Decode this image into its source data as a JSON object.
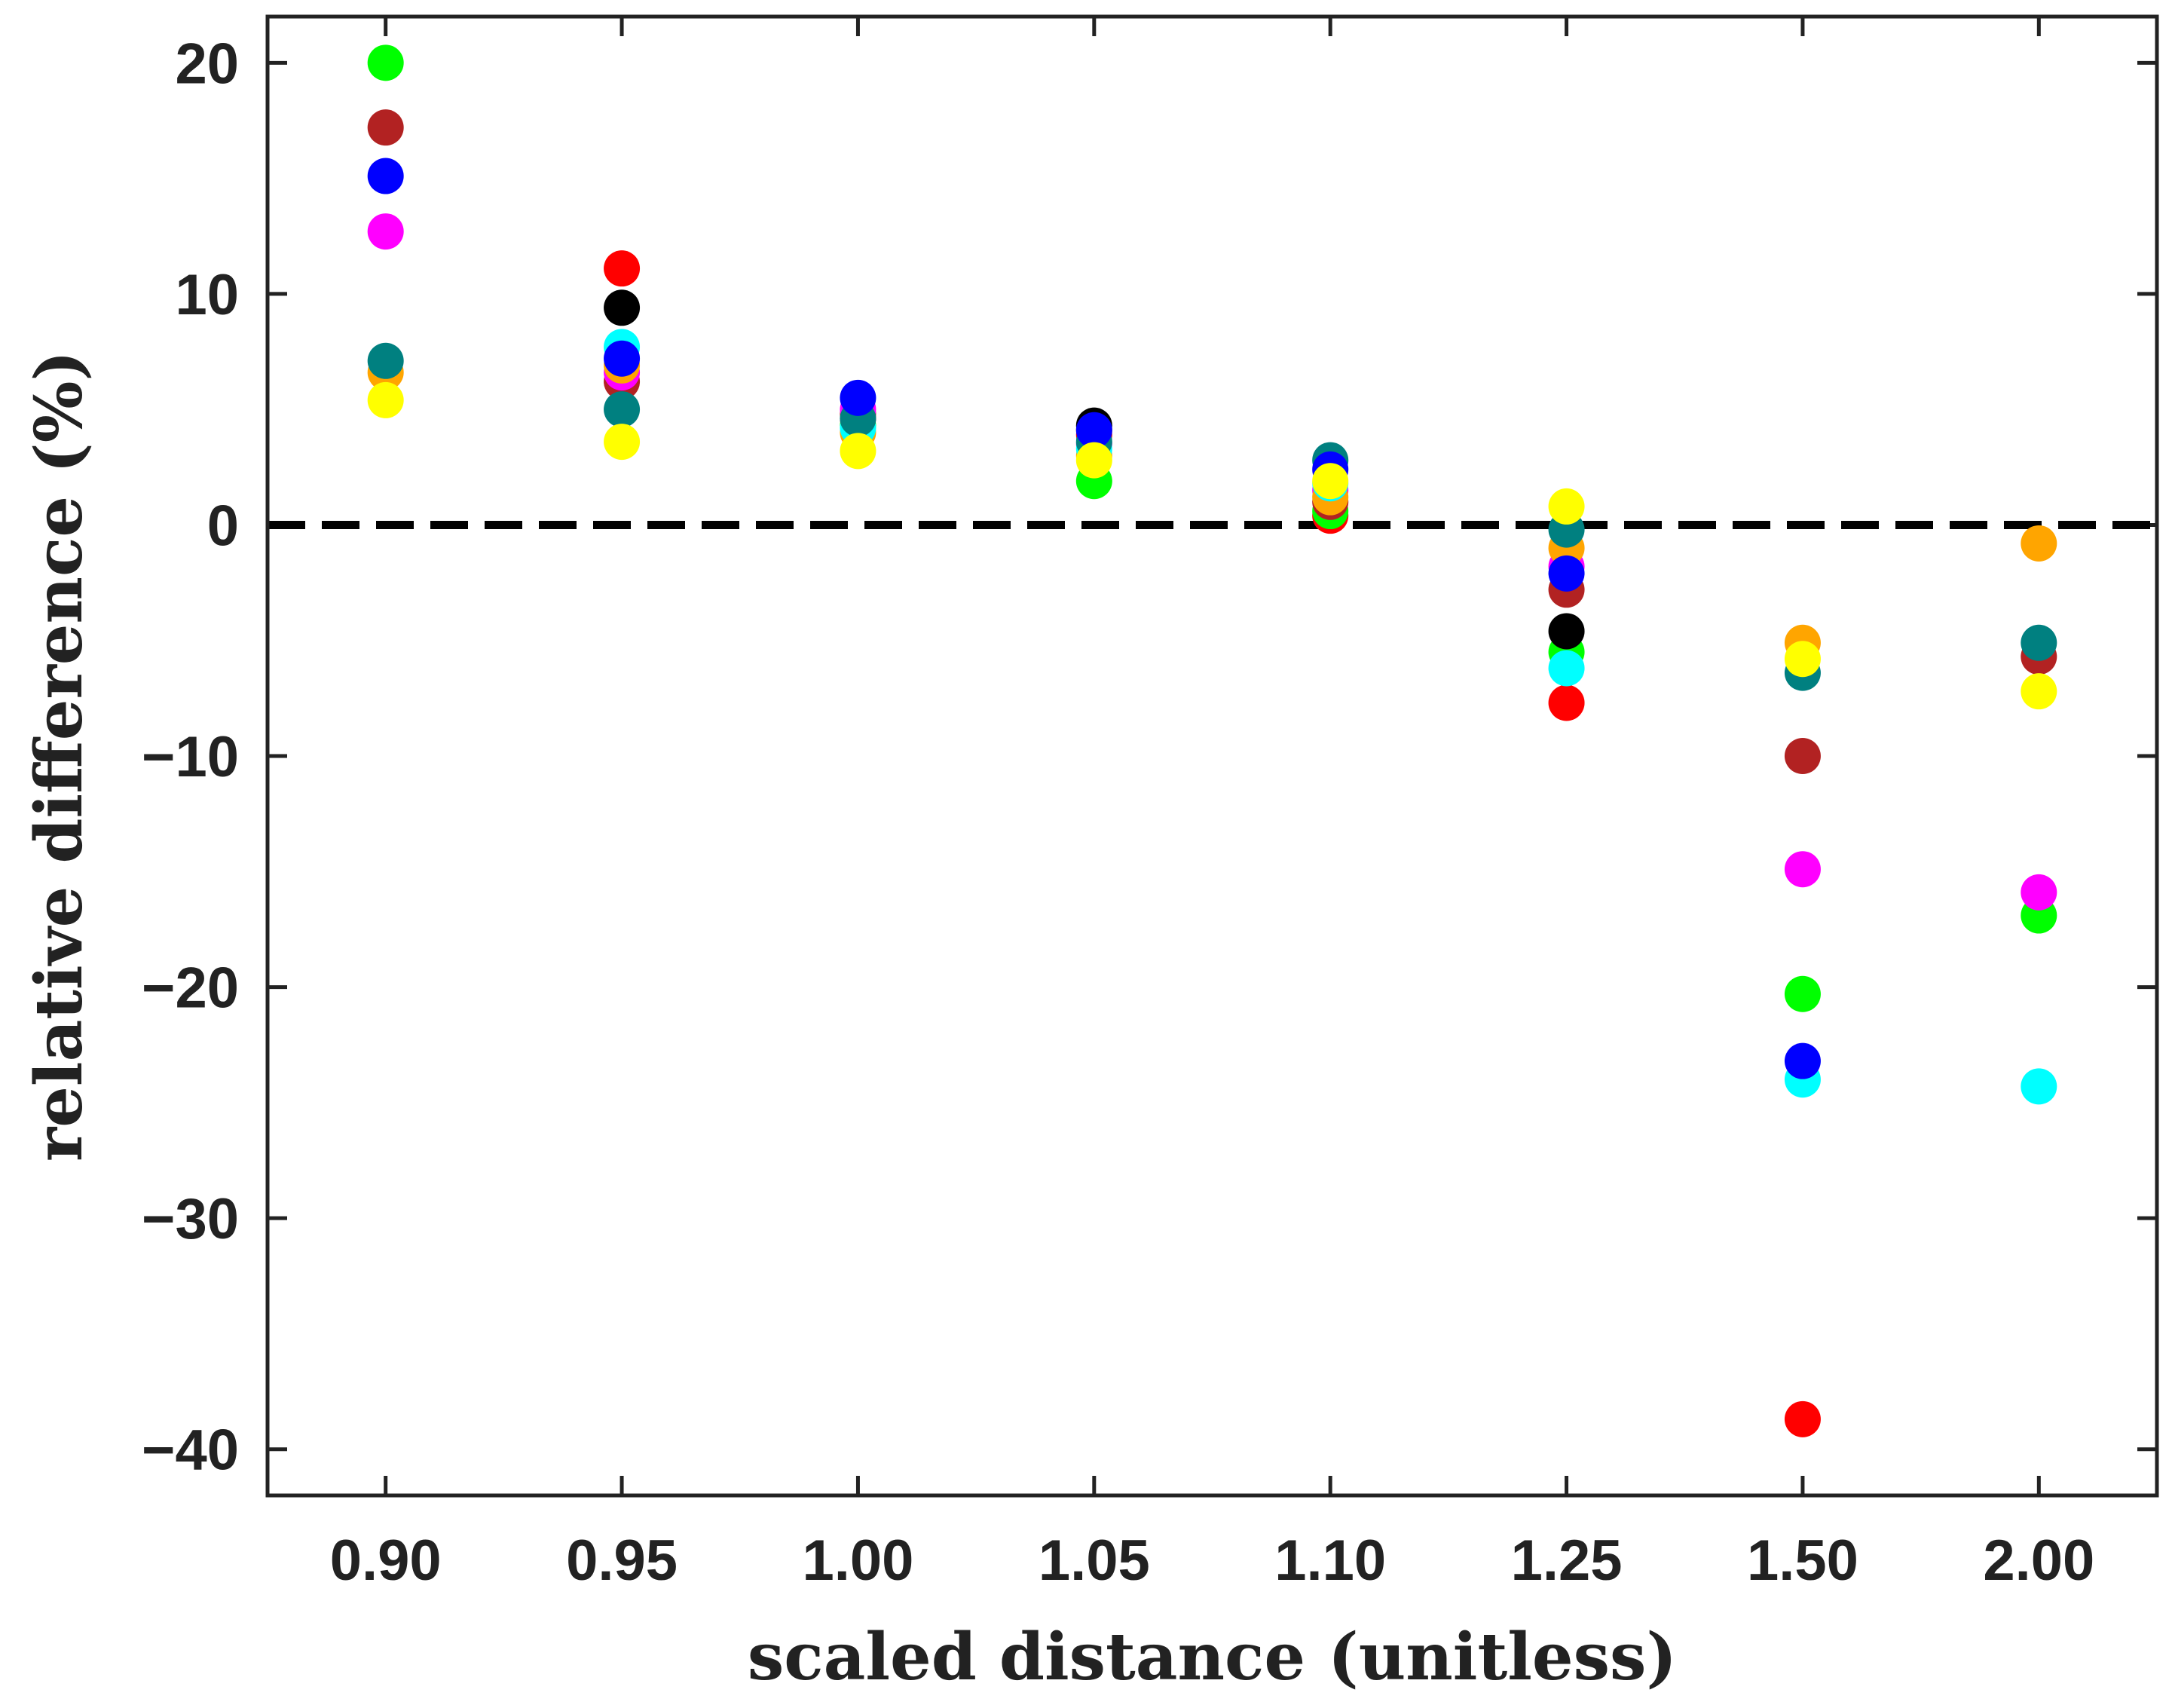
{
  "chart_data": {
    "type": "scatter",
    "xlabel": "scaled distance (unitless)",
    "ylabel": "relative difference (%)",
    "categories": [
      "0.90",
      "0.95",
      "1.00",
      "1.05",
      "1.10",
      "1.25",
      "1.50",
      "2.00"
    ],
    "yticks": [
      20,
      10,
      0,
      -10,
      -20,
      -30,
      -40
    ],
    "ytick_labels": [
      "20",
      "10",
      "0",
      "−10",
      "−20",
      "−30",
      "−40"
    ],
    "ylim": [
      -42,
      22
    ],
    "xlim": [
      -0.5,
      7.5
    ],
    "grid": false,
    "reference_line": {
      "y": 0,
      "style": "dashed",
      "color": "#000000"
    },
    "series": [
      {
        "color": "#ff0000",
        "values": [
          null,
          11.1,
          4.6,
          3.9,
          0.4,
          -7.7,
          -38.7,
          null
        ]
      },
      {
        "color": "#00ff00",
        "values": [
          20.0,
          null,
          4.3,
          1.9,
          0.6,
          -5.5,
          -20.3,
          -16.9
        ]
      },
      {
        "color": "#b22222",
        "values": [
          17.2,
          6.2,
          4.8,
          4.1,
          1.0,
          -2.8,
          -10.0,
          -5.7
        ]
      },
      {
        "color": "#ff00ff",
        "values": [
          12.7,
          6.6,
          5.0,
          3.5,
          1.5,
          -1.8,
          -14.9,
          -15.9
        ]
      },
      {
        "color": "#ffa500",
        "values": [
          6.6,
          6.9,
          4.0,
          3.0,
          1.2,
          -1.0,
          -5.1,
          -0.8
        ]
      },
      {
        "color": "#00ffff",
        "values": [
          null,
          7.7,
          4.2,
          3.3,
          1.8,
          -6.2,
          -24.0,
          -24.3
        ]
      },
      {
        "color": "#008080",
        "values": [
          7.1,
          5.0,
          4.6,
          3.6,
          2.8,
          -0.2,
          -6.4,
          -5.1
        ]
      },
      {
        "color": "#000000",
        "values": [
          null,
          9.4,
          null,
          4.3,
          null,
          -4.6,
          null,
          null
        ]
      },
      {
        "color": "#0000ff",
        "values": [
          15.1,
          7.2,
          5.5,
          4.1,
          2.4,
          -2.1,
          -23.2,
          null
        ]
      },
      {
        "color": "#ffff00",
        "values": [
          5.4,
          3.6,
          3.2,
          2.8,
          1.9,
          0.8,
          -5.8,
          -7.2
        ]
      }
    ]
  }
}
